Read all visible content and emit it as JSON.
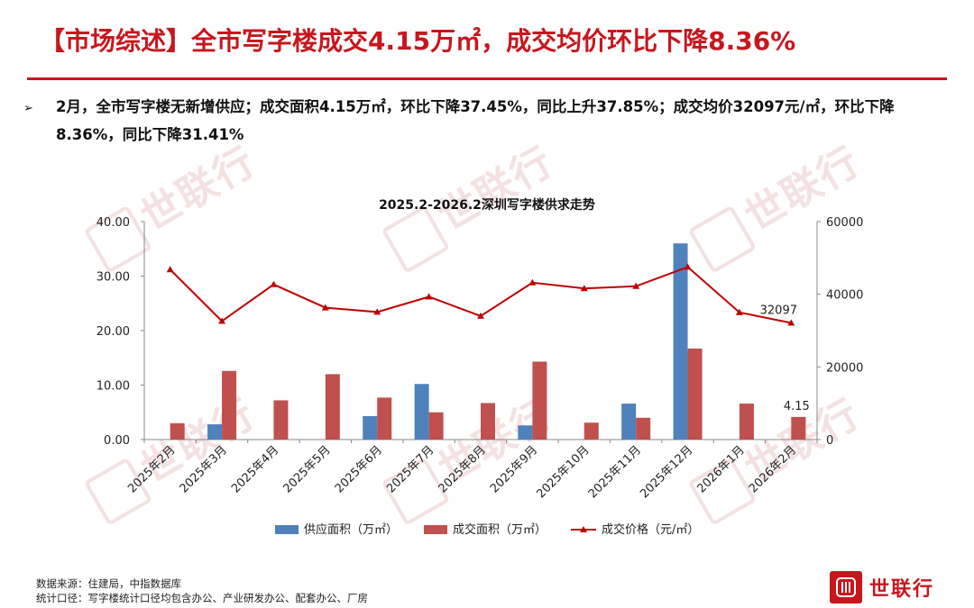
{
  "slide": {
    "title": "【市场综述】全市写字楼成交4.15万㎡，成交均价环比下降8.36%",
    "bullet": "2月，全市写字楼无新增供应；成交面积4.15万㎡，环比下降37.45%，同比上升37.85%；成交均价32097元/㎡，环比下降8.36%，同比下降31.41%",
    "footer_source": "数据来源：住建局，中指数据库",
    "footer_scope": "统计口径：写字楼统计口径均包含办公、产业研发办公、配套办公、厂房",
    "logo_text": "世联行",
    "watermark_text": "世联行"
  },
  "colors": {
    "accent": "#c8161d",
    "supply": "#4f81bd",
    "transaction": "#c0504d",
    "price": "#c00000"
  },
  "chart_data": {
    "type": "bar",
    "title": "2025.2-2026.2深圳写字楼供求走势",
    "categories": [
      "2025年2月",
      "2025年3月",
      "2025年4月",
      "2025年5月",
      "2025年6月",
      "2025年7月",
      "2025年8月",
      "2025年9月",
      "2025年10月",
      "2025年11月",
      "2025年12月",
      "2026年1月",
      "2026年2月"
    ],
    "series": [
      {
        "name": "供应面积（万㎡）",
        "kind": "bar",
        "axis": "left",
        "values": [
          0,
          2.8,
          0,
          0,
          4.3,
          10.2,
          0,
          2.6,
          0,
          6.6,
          36.0,
          0,
          0
        ]
      },
      {
        "name": "成交面积（万㎡）",
        "kind": "bar",
        "axis": "left",
        "values": [
          3.0,
          12.6,
          7.2,
          12.0,
          7.7,
          5.0,
          6.7,
          14.3,
          3.1,
          4.0,
          16.7,
          6.6,
          4.15
        ]
      },
      {
        "name": "成交价格（元/㎡）",
        "kind": "line",
        "axis": "right",
        "values": [
          46800,
          32600,
          42700,
          36300,
          35100,
          39300,
          34000,
          43200,
          41600,
          42200,
          47500,
          35000,
          32097
        ]
      }
    ],
    "y_left": {
      "min": 0,
      "max": 40,
      "ticks": [
        "0.00",
        "10.00",
        "20.00",
        "30.00",
        "40.00"
      ]
    },
    "y_right": {
      "min": 0,
      "max": 60000,
      "ticks": [
        "0",
        "20000",
        "40000",
        "60000"
      ]
    },
    "data_labels": {
      "transaction_last": "4.15",
      "price_last": "32097"
    },
    "legend_position": "bottom",
    "grid": false
  }
}
